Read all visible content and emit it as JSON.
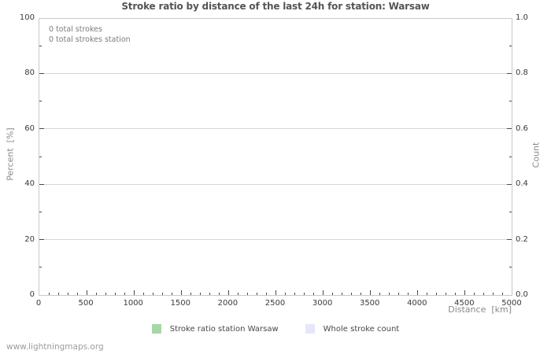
{
  "footer": "www.lightningmaps.org",
  "chart_data": {
    "type": "line",
    "title": "Stroke ratio by distance of the last 24h for station: Warsaw",
    "annotations": [
      "0 total strokes",
      "0 total strokes station"
    ],
    "x_axis": {
      "label": "Distance  [km]",
      "min": 0,
      "max": 5000,
      "major_step": 500,
      "minor_step": 100,
      "decimals": 0
    },
    "y_left": {
      "label": "Percent  [%]",
      "min": 0,
      "max": 100,
      "major_step": 20,
      "minor_step": 10,
      "decimals": 0
    },
    "y_right": {
      "label": "Count",
      "min": 0.0,
      "max": 1.0,
      "major_step": 0.2,
      "minor_step": 0.1,
      "decimals": 1
    },
    "grid": "horizontal-major-only",
    "legend_position": "bottom-center",
    "series": [
      {
        "name": "Stroke ratio station Warsaw",
        "color": "#a7d6a7",
        "x": [],
        "values": []
      },
      {
        "name": "Whole stroke count",
        "color": "#e6e6fa",
        "x": [],
        "values": []
      }
    ],
    "totals": {
      "total_strokes": 0,
      "total_strokes_station": 0
    }
  },
  "legend": {
    "items": [
      {
        "label": "Stroke ratio station Warsaw",
        "color": "#a7d6a7"
      },
      {
        "label": "Whole stroke count",
        "color": "#e6e6fa"
      }
    ]
  }
}
